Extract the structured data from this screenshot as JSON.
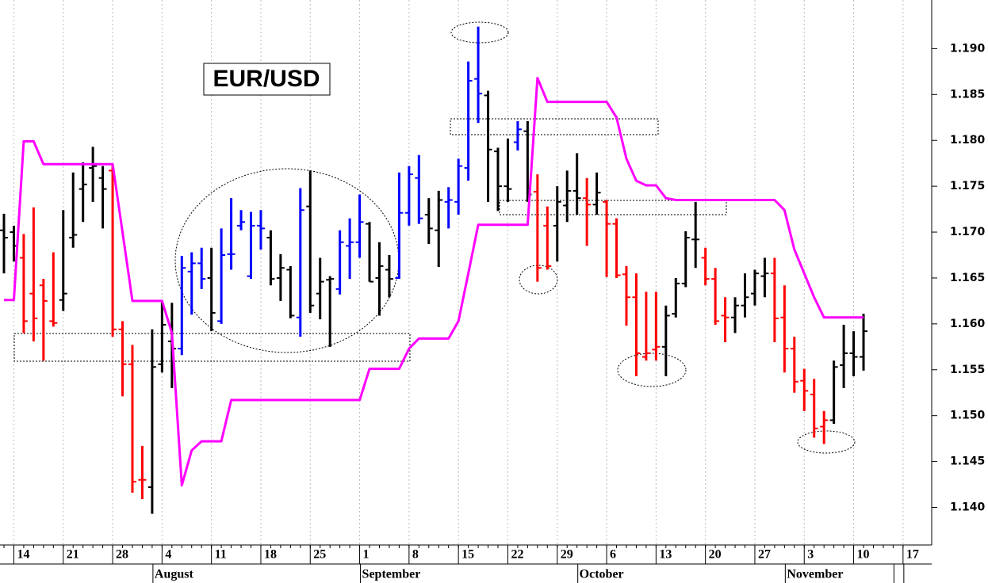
{
  "chart_data": {
    "type": "ohlc",
    "title": "EUR/USD",
    "categories": [
      null,
      "14",
      null,
      null,
      null,
      null,
      "21",
      null,
      null,
      null,
      null,
      "28",
      null,
      null,
      null,
      null,
      "4",
      null,
      null,
      null,
      null,
      "11",
      null,
      null,
      null,
      null,
      "18",
      null,
      null,
      null,
      null,
      "25",
      null,
      null,
      null,
      null,
      "1",
      null,
      null,
      null,
      null,
      "8",
      null,
      null,
      null,
      null,
      "15",
      null,
      null,
      null,
      null,
      "22",
      null,
      null,
      null,
      null,
      "29",
      null,
      null,
      null,
      null,
      "6",
      null,
      null,
      null,
      null,
      "13",
      null,
      null,
      null,
      null,
      "20",
      null,
      null,
      null,
      null,
      "27",
      null,
      null,
      null,
      null,
      "3",
      null,
      null,
      null,
      null,
      "10",
      null,
      null,
      null,
      null,
      "17"
    ],
    "month_labels": [
      null,
      null,
      null,
      null,
      null,
      null,
      null,
      null,
      null,
      null,
      null,
      null,
      null,
      null,
      null,
      "August",
      null,
      null,
      null,
      null,
      null,
      null,
      null,
      null,
      null,
      null,
      null,
      null,
      null,
      null,
      null,
      null,
      null,
      null,
      null,
      null,
      "September",
      null,
      null,
      null,
      null,
      null,
      null,
      null,
      null,
      null,
      null,
      null,
      null,
      null,
      null,
      null,
      null,
      null,
      null,
      null,
      null,
      null,
      "October",
      null,
      null,
      null,
      null,
      null,
      null,
      null,
      null,
      null,
      null,
      null,
      null,
      null,
      null,
      null,
      null,
      null,
      null,
      null,
      null,
      "November",
      null,
      null,
      null,
      null,
      null,
      null,
      null,
      null,
      null,
      null
    ],
    "open": [
      1.1702,
      1.17,
      1.1672,
      1.1633,
      1.1642,
      1.1603,
      1.1626,
      1.1694,
      1.1747,
      1.177,
      1.1759,
      1.1767,
      1.1594,
      1.1556,
      1.143,
      1.1422,
      1.1556,
      1.1581,
      1.1573,
      1.1657,
      1.1666,
      1.165,
      1.1603,
      1.1676,
      1.1707,
      1.1652,
      1.1707,
      1.1694,
      1.165,
      1.1659,
      1.1607,
      1.1728,
      1.1633,
      1.1648,
      1.1638,
      1.1685,
      1.1689,
      1.1709,
      1.165,
      1.1659,
      1.165,
      1.1721,
      1.1759,
      1.1719,
      1.1702,
      1.1733,
      1.1733,
      1.177,
      1.1867,
      1.1849,
      1.1788,
      1.175,
      1.1798,
      1.181,
      1.1744,
      1.1707,
      1.1707,
      1.1729,
      1.1745,
      1.1737,
      1.173,
      1.1733,
      1.1709,
      1.1654,
      1.1629,
      1.1564,
      1.1572,
      1.1575,
      1.1611,
      1.1644,
      1.1692,
      1.1672,
      1.1649,
      1.1609,
      1.1607,
      1.162,
      1.1633,
      1.1652,
      1.1655,
      1.1607,
      1.1573,
      1.1538,
      1.1523,
      1.1488,
      1.1495,
      1.1555,
      1.1568,
      1.1564,
      null,
      null,
      null,
      null
    ],
    "high": [
      1.172,
      1.1707,
      1.1698,
      1.1727,
      1.1649,
      1.1678,
      1.1724,
      1.1765,
      1.1776,
      1.1793,
      1.1772,
      1.1773,
      1.1603,
      1.1577,
      1.1467,
      1.1594,
      1.1626,
      1.1623,
      1.1674,
      1.1678,
      1.1683,
      1.1683,
      1.1704,
      1.1737,
      1.1724,
      1.1722,
      1.1724,
      1.1702,
      1.1676,
      1.1663,
      1.1748,
      1.1767,
      1.1672,
      1.1652,
      1.1702,
      1.1715,
      1.1741,
      1.1711,
      1.1689,
      1.1675,
      1.1765,
      1.1772,
      1.1784,
      1.1737,
      1.1745,
      1.1749,
      1.178,
      1.1886,
      1.1924,
      1.1854,
      1.1792,
      1.1802,
      1.1821,
      1.1821,
      1.1763,
      1.1728,
      1.175,
      1.1767,
      1.1786,
      1.1759,
      1.1765,
      1.1735,
      1.1715,
      1.1663,
      1.1655,
      1.1635,
      1.1635,
      1.162,
      1.165,
      1.1701,
      1.1733,
      1.1683,
      1.1661,
      1.1629,
      1.1629,
      1.1655,
      1.1659,
      1.1672,
      1.1672,
      1.1642,
      1.1586,
      1.1551,
      1.154,
      1.1505,
      1.156,
      1.1599,
      1.1592,
      1.1611,
      null,
      null,
      null,
      null
    ],
    "low": [
      1.1655,
      1.1668,
      1.159,
      1.1581,
      1.156,
      1.1597,
      1.1614,
      1.1683,
      1.1711,
      1.1733,
      1.1704,
      1.1586,
      1.1521,
      1.1416,
      1.1409,
      1.1393,
      1.1547,
      1.153,
      1.1566,
      1.161,
      1.1638,
      1.1592,
      1.16,
      1.1659,
      1.1702,
      1.1649,
      1.1681,
      1.1642,
      1.1625,
      1.1606,
      1.1586,
      1.1612,
      1.1605,
      1.1575,
      1.1632,
      1.1649,
      1.1672,
      1.1646,
      1.1609,
      1.1629,
      1.1649,
      1.1707,
      1.1709,
      1.1687,
      1.1662,
      1.1704,
      1.1719,
      1.1756,
      1.1819,
      1.1733,
      1.1723,
      1.1733,
      1.1789,
      1.1733,
      1.1646,
      1.1659,
      1.1668,
      1.1711,
      1.1719,
      1.1685,
      1.1719,
      1.1651,
      1.165,
      1.1598,
      1.1543,
      1.156,
      1.156,
      1.1543,
      1.1607,
      1.164,
      1.1661,
      1.1642,
      1.1599,
      1.158,
      1.159,
      1.1607,
      1.162,
      1.1629,
      1.158,
      1.1547,
      1.1525,
      1.1505,
      1.1476,
      1.1469,
      1.1491,
      1.153,
      1.1543,
      1.1549,
      null,
      null,
      null,
      null
    ],
    "close": [
      1.1694,
      1.1685,
      1.1603,
      1.1606,
      1.1625,
      1.1601,
      1.1633,
      1.1697,
      1.1752,
      1.1772,
      1.1747,
      1.1594,
      1.1556,
      1.1428,
      1.143,
      1.1553,
      1.1599,
      1.1573,
      1.1661,
      1.1666,
      1.1649,
      1.1612,
      1.1675,
      1.1676,
      1.1711,
      1.1707,
      1.1704,
      1.1649,
      1.1661,
      1.1609,
      1.1724,
      1.162,
      1.1646,
      1.1649,
      1.1689,
      1.1689,
      1.1711,
      1.1646,
      1.1663,
      1.1649,
      1.1721,
      1.1763,
      1.1715,
      1.1704,
      1.1735,
      1.1735,
      1.1772,
      1.1865,
      1.1851,
      1.179,
      1.175,
      1.1747,
      1.1812,
      1.1741,
      1.1661,
      1.1663,
      1.1733,
      1.1745,
      1.1737,
      1.173,
      1.1743,
      1.1709,
      1.1653,
      1.1629,
      1.1568,
      1.1568,
      1.1575,
      1.1609,
      1.1644,
      1.1694,
      1.1692,
      1.1649,
      1.1603,
      1.1607,
      1.162,
      1.1629,
      1.1655,
      1.1655,
      1.1606,
      1.1573,
      1.1537,
      1.1527,
      1.1486,
      1.1495,
      1.1553,
      1.1568,
      1.1564,
      1.1592,
      null,
      null,
      null,
      null
    ],
    "bar_colors": [
      "black",
      "black",
      "red",
      "red",
      "red",
      "red",
      "black",
      "black",
      "black",
      "black",
      "black",
      "red",
      "red",
      "red",
      "red",
      "black",
      "black",
      "black",
      "blue",
      "blue",
      "blue",
      "black",
      "blue",
      "blue",
      "blue",
      "blue",
      "blue",
      "black",
      "black",
      "black",
      "blue",
      "black",
      "black",
      "black",
      "blue",
      "blue",
      "blue",
      "black",
      "black",
      "black",
      "blue",
      "blue",
      "blue",
      "black",
      "black",
      "blue",
      "blue",
      "blue",
      "blue",
      "black",
      "black",
      "black",
      "blue",
      "black",
      "red",
      "red",
      "black",
      "black",
      "black",
      "red",
      "black",
      "red",
      "red",
      "red",
      "red",
      "red",
      "red",
      "black",
      "black",
      "black",
      "black",
      "red",
      "red",
      "red",
      "black",
      "black",
      "black",
      "black",
      "red",
      "red",
      "red",
      "red",
      "red",
      "red",
      "black",
      "black",
      "black",
      "black",
      null,
      null,
      null,
      null
    ],
    "overlay_line": {
      "color": "#ff00ff",
      "values": [
        1.1626,
        1.1626,
        1.1799,
        1.1799,
        1.1774,
        1.1774,
        1.1774,
        1.1774,
        1.1774,
        1.1774,
        1.1774,
        1.1774,
        1.17,
        1.1625,
        1.1625,
        1.1625,
        1.1625,
        1.159,
        1.1424,
        1.1462,
        1.1472,
        1.1472,
        1.1472,
        1.1517,
        1.1517,
        1.1517,
        1.1517,
        1.1517,
        1.1517,
        1.1517,
        1.1517,
        1.1517,
        1.1517,
        1.1517,
        1.1517,
        1.1517,
        1.1517,
        1.1551,
        1.1551,
        1.1551,
        1.1551,
        1.1573,
        1.1584,
        1.1584,
        1.1584,
        1.1584,
        1.1603,
        1.1655,
        1.1708,
        1.1708,
        1.1708,
        1.1708,
        1.1708,
        1.1708,
        1.1868,
        1.1842,
        1.1842,
        1.1842,
        1.1842,
        1.1842,
        1.1842,
        1.1842,
        1.1825,
        1.178,
        1.1756,
        1.1751,
        1.1751,
        1.1737,
        1.1735,
        1.1735,
        1.1735,
        1.1735,
        1.1735,
        1.1735,
        1.1735,
        1.1735,
        1.1735,
        1.1735,
        1.1735,
        1.1724,
        1.1681,
        1.1655,
        1.1629,
        1.1607,
        1.1607,
        1.1607,
        1.1607,
        1.1607,
        null,
        null,
        null,
        null
      ]
    },
    "ylim": [
      1.1359,
      1.1953
    ],
    "yticks": [
      {
        "value": 1.14,
        "label": "1.140"
      },
      {
        "value": 1.145,
        "label": "1.145"
      },
      {
        "value": 1.15,
        "label": "1.150"
      },
      {
        "value": 1.155,
        "label": "1.155"
      },
      {
        "value": 1.16,
        "label": "1.160"
      },
      {
        "value": 1.165,
        "label": "1.165"
      },
      {
        "value": 1.17,
        "label": "1.170"
      },
      {
        "value": 1.175,
        "label": "1.175"
      },
      {
        "value": 1.18,
        "label": "1.180"
      },
      {
        "value": 1.185,
        "label": "1.185"
      },
      {
        "value": 1.19,
        "label": "1.190"
      }
    ],
    "grid": true
  }
}
